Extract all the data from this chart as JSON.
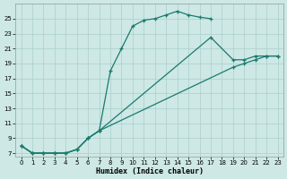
{
  "xlabel": "Humidex (Indice chaleur)",
  "bg_color": "#cde8e5",
  "grid_color": "#aacfcc",
  "line_color": "#1a7a6e",
  "xlim": [
    -0.5,
    23.5
  ],
  "ylim": [
    6.5,
    27
  ],
  "yticks": [
    7,
    9,
    11,
    13,
    15,
    17,
    19,
    21,
    23,
    25
  ],
  "xticks": [
    0,
    1,
    2,
    3,
    4,
    5,
    6,
    7,
    8,
    9,
    10,
    11,
    12,
    13,
    14,
    15,
    16,
    17,
    18,
    19,
    20,
    21,
    22,
    23
  ],
  "series1_x": [
    0,
    1,
    2,
    3,
    4,
    5,
    6,
    7,
    8,
    9,
    10,
    11,
    12,
    13,
    14,
    15,
    16,
    17
  ],
  "series1_y": [
    8,
    7,
    7,
    7,
    7,
    7.5,
    9,
    10,
    18,
    21,
    24,
    24.8,
    25,
    25.5,
    26,
    25.5,
    25.2,
    25
  ],
  "series2_x": [
    0,
    1,
    2,
    3,
    4,
    5,
    6,
    7,
    17,
    19,
    20,
    21,
    22,
    23
  ],
  "series2_y": [
    8,
    7,
    7,
    7,
    7,
    7.5,
    9,
    10,
    22.5,
    19.5,
    19.5,
    20,
    20,
    20
  ],
  "series3_x": [
    0,
    1,
    2,
    3,
    4,
    5,
    6,
    7,
    19,
    20,
    21,
    22,
    23
  ],
  "series3_y": [
    8,
    7,
    7,
    7,
    7,
    7.5,
    9,
    10,
    18.5,
    19,
    19.5,
    20,
    20
  ]
}
